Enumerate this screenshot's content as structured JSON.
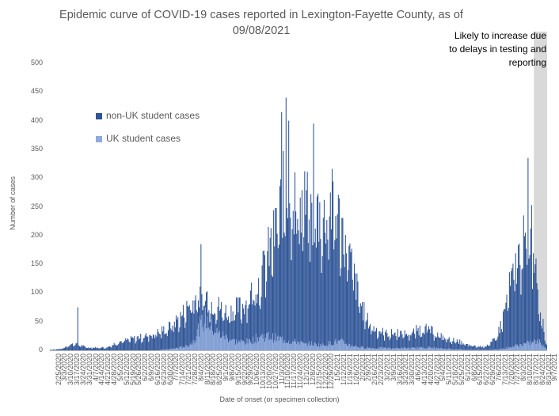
{
  "chart_data": {
    "type": "bar",
    "stacked": true,
    "title": "Epidemic curve of COVID-19 cases reported in Lexington-Fayette County, as of\n09/08/2021",
    "ylabel": "Number of cases",
    "xlabel": "Date of onset (or specimen collection)",
    "ylim": [
      0,
      500
    ],
    "yticks": [
      0,
      50,
      100,
      150,
      200,
      250,
      300,
      350,
      400,
      450,
      500
    ],
    "x_range": [
      "2020-02-25",
      "2021-09-07"
    ],
    "xtick_labels": [
      "2/25/2020",
      "3/3/2020",
      "3/10/2020",
      "3/17/2020",
      "3/24/2020",
      "3/31/2020",
      "4/7/2020",
      "4/14/2020",
      "4/21/2020",
      "4/28/2020",
      "5/5/2020",
      "5/12/2020",
      "5/19/2020",
      "5/26/2020",
      "6/2/2020",
      "6/9/2020",
      "6/16/2020",
      "6/23/2020",
      "6/30/2020",
      "7/7/2020",
      "7/14/2020",
      "7/21/2020",
      "7/28/2020",
      "8/4/2020",
      "8/11/2020",
      "8/18/2020",
      "8/25/2020",
      "9/1/2020",
      "9/8/2020",
      "9/15/2020",
      "9/22/2020",
      "9/29/2020",
      "10/6/2020",
      "10/13/2020",
      "10/20/2020",
      "10/27/2020",
      "11/3/2020",
      "11/10/2020",
      "11/17/2020",
      "11/24/2020",
      "12/1/2020",
      "12/8/2020",
      "12/15/2020",
      "12/22/2020",
      "12/29/2020",
      "1/5/2021",
      "1/12/2021",
      "1/19/2021",
      "1/26/2021",
      "2/2/2021",
      "2/9/2021",
      "2/16/2021",
      "2/23/2021",
      "3/2/2021",
      "3/9/2021",
      "3/16/2021",
      "3/23/2021",
      "3/30/2021",
      "4/6/2021",
      "4/13/2021",
      "4/20/2021",
      "4/27/2021",
      "5/4/2021",
      "5/11/2021",
      "5/18/2021",
      "5/25/2021",
      "6/1/2021",
      "6/8/2021",
      "6/15/2021",
      "6/22/2021",
      "6/29/2021",
      "7/6/2021",
      "7/13/2021",
      "7/20/2021",
      "7/27/2021",
      "8/3/2021",
      "8/10/2021",
      "8/17/2021",
      "8/24/2021",
      "8/31/2021",
      "9/7/2021"
    ],
    "series": [
      {
        "name": "non-UK student cases",
        "color": "#2F5597"
      },
      {
        "name": "UK student cases",
        "color": "#8FAADC"
      }
    ],
    "x_dates": [
      "2020-02-25",
      "2020-03-10",
      "2020-03-17",
      "2020-03-24",
      "2020-04-07",
      "2020-04-28",
      "2020-05-12",
      "2020-05-26",
      "2020-06-09",
      "2020-06-23",
      "2020-07-07",
      "2020-07-21",
      "2020-07-28",
      "2020-08-04",
      "2020-08-11",
      "2020-08-18",
      "2020-08-25",
      "2020-09-01",
      "2020-09-08",
      "2020-09-15",
      "2020-09-22",
      "2020-09-29",
      "2020-10-06",
      "2020-10-13",
      "2020-10-20",
      "2020-10-27",
      "2020-11-03",
      "2020-11-10",
      "2020-11-17",
      "2020-11-24",
      "2020-12-01",
      "2020-12-08",
      "2020-12-15",
      "2020-12-22",
      "2020-12-29",
      "2021-01-05",
      "2021-01-12",
      "2021-01-19",
      "2021-01-26",
      "2021-02-02",
      "2021-02-09",
      "2021-02-16",
      "2021-02-23",
      "2021-03-02",
      "2021-03-09",
      "2021-03-16",
      "2021-03-23",
      "2021-03-30",
      "2021-04-06",
      "2021-04-13",
      "2021-04-20",
      "2021-04-27",
      "2021-05-04",
      "2021-05-11",
      "2021-05-18",
      "2021-05-25",
      "2021-06-01",
      "2021-06-08",
      "2021-06-15",
      "2021-06-22",
      "2021-06-29",
      "2021-07-06",
      "2021-07-13",
      "2021-07-20",
      "2021-07-27",
      "2021-08-03",
      "2021-08-10",
      "2021-08-17",
      "2021-08-24",
      "2021-08-31",
      "2021-09-07"
    ],
    "non_uk_total": [
      1,
      3,
      10,
      12,
      5,
      5,
      15,
      20,
      25,
      30,
      40,
      60,
      75,
      90,
      95,
      100,
      85,
      80,
      70,
      70,
      75,
      80,
      95,
      110,
      130,
      170,
      200,
      250,
      300,
      280,
      250,
      260,
      240,
      250,
      230,
      260,
      250,
      220,
      180,
      130,
      85,
      55,
      40,
      35,
      30,
      30,
      32,
      30,
      30,
      35,
      40,
      38,
      30,
      25,
      20,
      18,
      15,
      10,
      8,
      7,
      8,
      12,
      25,
      60,
      110,
      150,
      185,
      200,
      190,
      70,
      10
    ],
    "uk_cases": [
      0,
      0,
      0,
      0,
      0,
      0,
      0,
      0,
      0,
      0,
      2,
      5,
      8,
      15,
      40,
      55,
      40,
      30,
      25,
      20,
      15,
      15,
      15,
      20,
      25,
      25,
      22,
      20,
      18,
      15,
      15,
      10,
      12,
      10,
      10,
      12,
      15,
      15,
      10,
      8,
      5,
      5,
      4,
      4,
      4,
      4,
      4,
      4,
      4,
      4,
      5,
      5,
      4,
      3,
      3,
      2,
      2,
      1,
      1,
      1,
      1,
      1,
      2,
      3,
      5,
      8,
      10,
      12,
      15,
      15,
      2
    ],
    "peaks": [
      {
        "date": "2020-03-27",
        "value": 75
      },
      {
        "date": "2020-08-13",
        "value": 185
      },
      {
        "date": "2020-11-12",
        "value": 415
      },
      {
        "date": "2020-11-17",
        "value": 440
      },
      {
        "date": "2020-11-20",
        "value": 400
      },
      {
        "date": "2020-12-18",
        "value": 395
      },
      {
        "date": "2021-08-17",
        "value": 335
      },
      {
        "date": "2021-08-21",
        "value": 253
      }
    ],
    "shaded_region": {
      "start": "2021-08-24",
      "end": "2021-09-07",
      "color": "#D9D9D9"
    },
    "annotation": "Likely to increase due\nto delays in testing and\nreporting",
    "legend_placement": "top-left",
    "grid": false
  }
}
